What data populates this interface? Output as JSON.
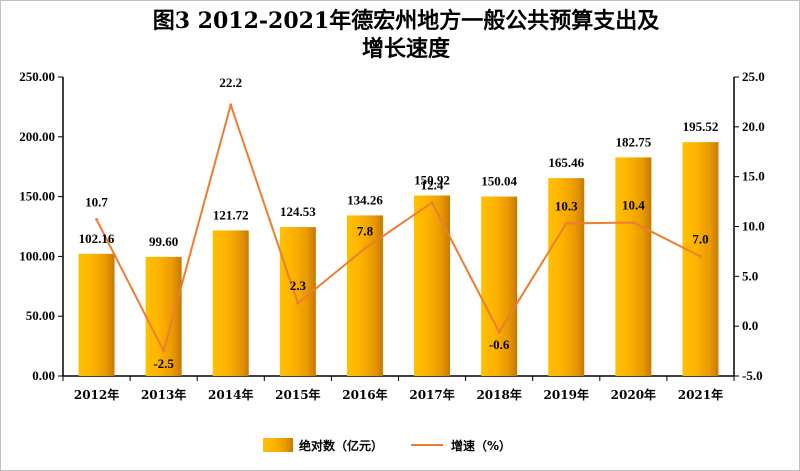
{
  "chart_data": {
    "type": "bar",
    "title": "图3 2012-2021年德宏州地方一般公共预算支出及增长速度",
    "categories": [
      "2012年",
      "2013年",
      "2014年",
      "2015年",
      "2016年",
      "2017年",
      "2018年",
      "2019年",
      "2020年",
      "2021年"
    ],
    "series": [
      {
        "name": "绝对数（亿元）",
        "type": "bar",
        "axis": "left",
        "color": "#f5a800",
        "values": [
          102.16,
          99.6,
          121.72,
          124.53,
          134.26,
          150.92,
          150.04,
          165.46,
          182.75,
          195.52
        ],
        "labels": [
          "102.16",
          "99.60",
          "121.72",
          "124.53",
          "134.26",
          "150.92",
          "150.04",
          "165.46",
          "182.75",
          "195.52"
        ]
      },
      {
        "name": "增速（%）",
        "type": "line",
        "axis": "right",
        "color": "#ed7d31",
        "values": [
          10.7,
          -2.5,
          22.2,
          2.3,
          7.8,
          12.4,
          -0.6,
          10.3,
          10.4,
          7.0
        ],
        "labels": [
          "10.7",
          "-2.5",
          "22.2",
          "2.3",
          "7.8",
          "12.4",
          "-0.6",
          "10.3",
          "10.4",
          "7.0"
        ]
      }
    ],
    "y_left": {
      "min": 0,
      "max": 250,
      "step": 50,
      "tick_labels": [
        "0.00",
        "50.00",
        "100.00",
        "150.00",
        "200.00",
        "250.00"
      ]
    },
    "y_right": {
      "min": -5,
      "max": 25,
      "step": 5,
      "tick_labels": [
        "-5.0",
        "0.0",
        "5.0",
        "10.0",
        "15.0",
        "20.0",
        "25.0"
      ]
    },
    "grid": false,
    "legend": "bottom"
  }
}
